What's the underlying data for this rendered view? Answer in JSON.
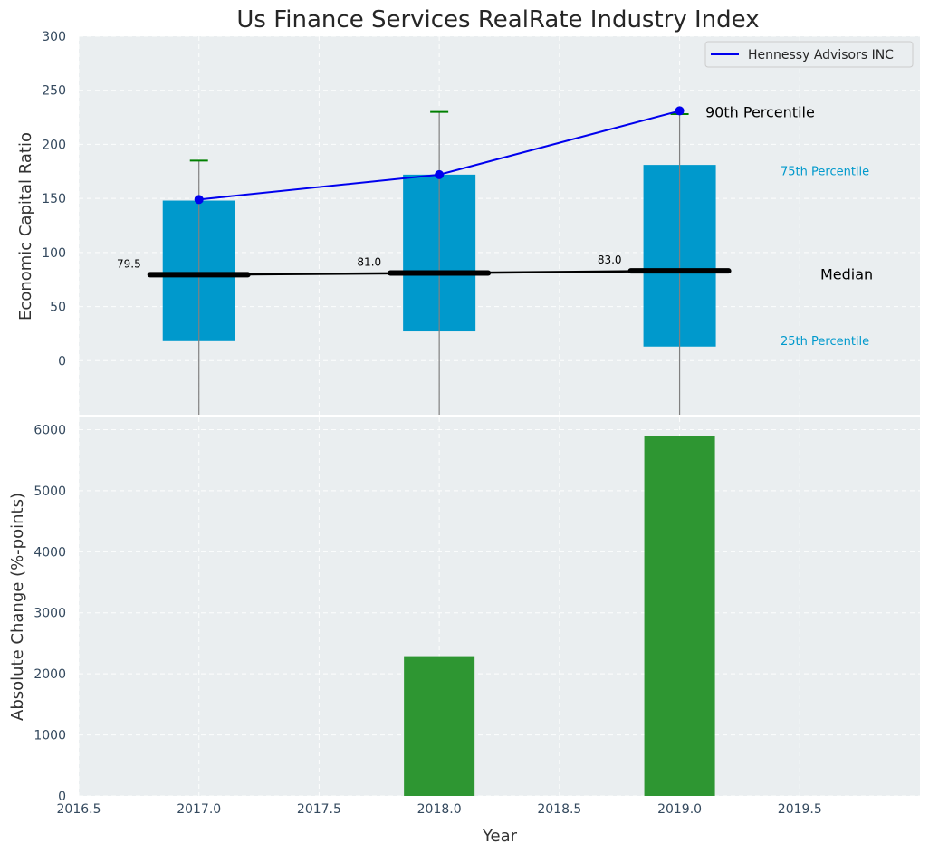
{
  "chart_data": [
    {
      "type": "box",
      "title": "Us Finance Services RealRate Industry Index",
      "ylabel": "Economic Capital Ratio",
      "ylim": [
        -50,
        300
      ],
      "yticks": [
        0,
        50,
        100,
        150,
        200,
        250,
        300
      ],
      "xlim": [
        2016.5,
        2020.0
      ],
      "grid": true,
      "colors": {
        "box": "#0099cc",
        "median": "#000000",
        "whisker": "#808080",
        "cap": "#008000",
        "line": "#0000ee",
        "background": "#eaeef0"
      },
      "boxes": [
        {
          "x": 2017,
          "q1": 18,
          "q3": 148,
          "median": 79.5,
          "whisker_low": -50,
          "whisker_high": 185,
          "median_label": "79.5"
        },
        {
          "x": 2018,
          "q1": 27,
          "q3": 172,
          "median": 81.0,
          "whisker_low": -50,
          "whisker_high": 230,
          "median_label": "81.0"
        },
        {
          "x": 2019,
          "q1": 13,
          "q3": 181,
          "median": 83.0,
          "whisker_low": -50,
          "whisker_high": 228,
          "median_label": "83.0"
        }
      ],
      "series": [
        {
          "name": "Hennessy Advisors INC",
          "x": [
            2017,
            2018,
            2019
          ],
          "values": [
            149,
            172,
            231
          ]
        }
      ],
      "annotations": {
        "p90": "90th Percentile",
        "p75": "75th Percentile",
        "median": "Median",
        "p25": "25th Percentile"
      },
      "legend": "top-right"
    },
    {
      "type": "bar",
      "xlabel": "Year",
      "ylabel": "Absolute Change (%-points)",
      "ylim": [
        0,
        6200
      ],
      "yticks": [
        0,
        1000,
        2000,
        3000,
        4000,
        5000,
        6000
      ],
      "xlim": [
        2016.5,
        2020.0
      ],
      "xticks": [
        "2016.5",
        "2017.0",
        "2017.5",
        "2018.0",
        "2018.5",
        "2019.0",
        "2019.5"
      ],
      "x": [
        2017,
        2018,
        2019
      ],
      "values": [
        0,
        2290,
        5890
      ],
      "grid": true,
      "colors": {
        "bar": "#2e9632",
        "background": "#eaeef0"
      }
    }
  ]
}
